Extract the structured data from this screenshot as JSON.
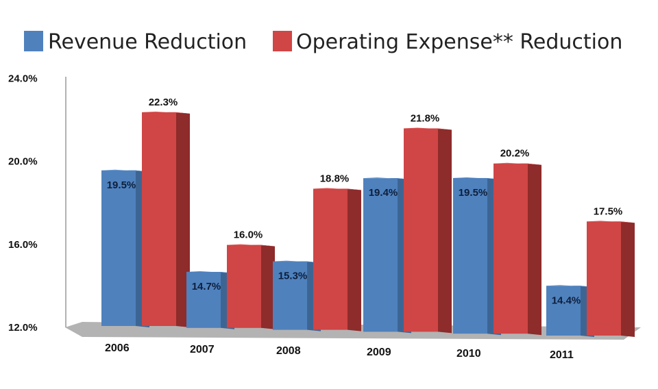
{
  "chart_data": {
    "type": "bar",
    "style": "3d-clustered-column",
    "categories": [
      "2006",
      "2007",
      "2008",
      "2009",
      "2010",
      "2011"
    ],
    "series": [
      {
        "name": "Revenue Reduction",
        "values": [
          19.5,
          14.7,
          15.3,
          19.4,
          19.5,
          14.4
        ],
        "labels": [
          "19.5%",
          "14.7%",
          "15.3%",
          "19.4%",
          "19.5%",
          "14.4%"
        ],
        "color": "#4f81bd"
      },
      {
        "name": "Operating Expense** Reduction",
        "values": [
          22.3,
          16.0,
          18.8,
          21.8,
          20.2,
          17.5
        ],
        "labels": [
          "22.3%",
          "16.0%",
          "18.8%",
          "21.8%",
          "20.2%",
          "17.5%"
        ],
        "color": "#d04545"
      }
    ],
    "yticks": [
      "24.0%",
      "20.0%",
      "16.0%",
      "12.0%"
    ],
    "ytick_values": [
      24,
      20,
      16,
      12
    ],
    "ylim": [
      12,
      24
    ],
    "legend_placement": "top",
    "grid": false
  }
}
